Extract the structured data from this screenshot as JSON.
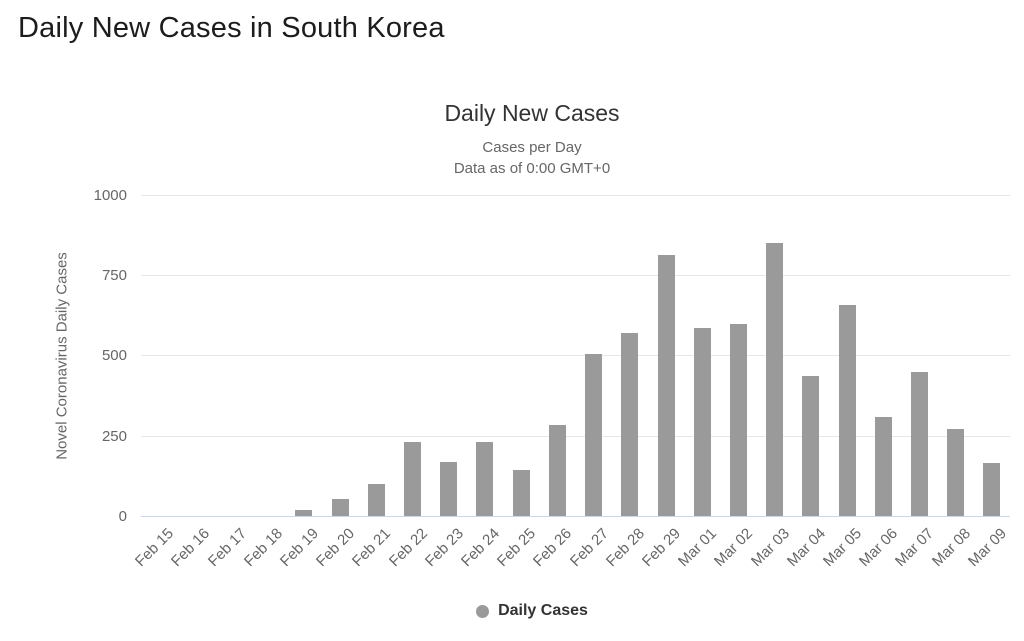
{
  "page": {
    "title": "Daily New Cases in South Korea"
  },
  "chart": {
    "title": "Daily New Cases",
    "subtitle_line1": "Cases per Day",
    "subtitle_line2": "Data as of 0:00 GMT+0",
    "y_axis_title": "Novel Coronavirus Daily Cases",
    "legend_label": "Daily Cases",
    "colors": {
      "bar": "#9a9a9a",
      "gridline": "#e7e7e7",
      "axis_line": "#ccd6eb",
      "tick_text": "#666666",
      "title_text": "#333333",
      "subtitle_text": "#666666"
    }
  },
  "chart_data": {
    "type": "bar",
    "title": "Daily New Cases",
    "subtitle": "Cases per Day — Data as of 0:00 GMT+0",
    "xlabel": "",
    "ylabel": "Novel Coronavirus Daily Cases",
    "categories": [
      "Feb 15",
      "Feb 16",
      "Feb 17",
      "Feb 18",
      "Feb 19",
      "Feb 20",
      "Feb 21",
      "Feb 22",
      "Feb 23",
      "Feb 24",
      "Feb 25",
      "Feb 26",
      "Feb 27",
      "Feb 28",
      "Feb 29",
      "Mar 01",
      "Mar 02",
      "Mar 03",
      "Mar 04",
      "Mar 05",
      "Mar 06",
      "Mar 07",
      "Mar 08",
      "Mar 09"
    ],
    "series": [
      {
        "name": "Daily Cases",
        "values": [
          0,
          0,
          0,
          0,
          20,
          53,
          100,
          229,
          169,
          231,
          144,
          284,
          505,
          571,
          813,
          586,
          599,
          851,
          435,
          658,
          309,
          448,
          272,
          165
        ]
      }
    ],
    "ylim": [
      0,
      1000
    ],
    "yticks": [
      0,
      250,
      500,
      750,
      1000
    ],
    "grid": true,
    "legend_position": "bottom"
  }
}
